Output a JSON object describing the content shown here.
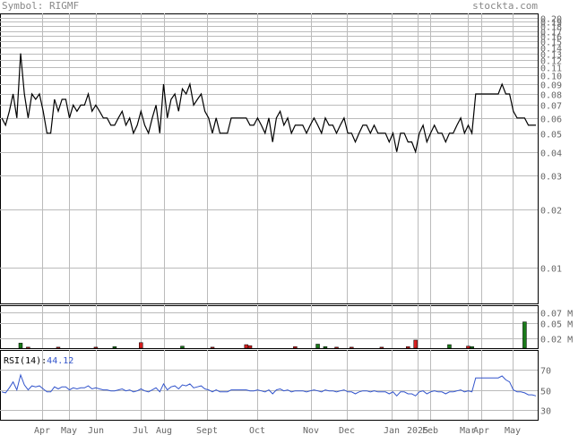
{
  "header": {
    "symbol_label": "Symbol:",
    "symbol": "RIGMF",
    "site": "stockta.com"
  },
  "colors": {
    "price_line": "#000000",
    "rsi_line": "#3355cc",
    "vol_up": "#1a7a1a",
    "vol_down": "#d42020",
    "grid": "#bbbbbb",
    "rsi_value": "#3355cc"
  },
  "chart_data": [
    {
      "type": "line",
      "name": "price",
      "scale": "log",
      "ylim": [
        0.0065,
        0.21
      ],
      "yticks": [
        0.2,
        0.19,
        0.18,
        0.17,
        0.16,
        0.15,
        0.14,
        0.13,
        0.12,
        0.11,
        0.1,
        0.09,
        0.08,
        0.07,
        0.06,
        0.05,
        0.04,
        0.03,
        0.02,
        0.01
      ],
      "ytick_labels": [
        "0.20",
        "0.19",
        "0.18",
        "0.17",
        "0.16",
        "0.15",
        "0.14",
        "0.13",
        "0.12",
        "0.11",
        "0.10",
        "0.09",
        "0.08",
        "0.07",
        "0.06",
        "0.05",
        "0.04",
        "0.03",
        "0.02",
        "0.01"
      ],
      "xticks": [
        "Apr",
        "May",
        "Jun",
        "Jul",
        "Aug",
        "Sept",
        "Oct",
        "Nov",
        "Dec",
        "Jan",
        "2025",
        "Feb",
        "Mar",
        "Apr",
        "May"
      ],
      "values": [
        0.06,
        0.055,
        0.065,
        0.08,
        0.06,
        0.13,
        0.08,
        0.06,
        0.08,
        0.075,
        0.08,
        0.065,
        0.05,
        0.05,
        0.075,
        0.065,
        0.075,
        0.075,
        0.06,
        0.07,
        0.065,
        0.07,
        0.07,
        0.08,
        0.065,
        0.07,
        0.065,
        0.06,
        0.06,
        0.055,
        0.055,
        0.06,
        0.065,
        0.055,
        0.06,
        0.05,
        0.055,
        0.065,
        0.055,
        0.05,
        0.06,
        0.07,
        0.05,
        0.09,
        0.06,
        0.075,
        0.08,
        0.065,
        0.085,
        0.08,
        0.09,
        0.07,
        0.075,
        0.08,
        0.065,
        0.06,
        0.05,
        0.06,
        0.05,
        0.05,
        0.05,
        0.06,
        0.06,
        0.06,
        0.06,
        0.06,
        0.055,
        0.055,
        0.06,
        0.055,
        0.05,
        0.06,
        0.045,
        0.06,
        0.065,
        0.055,
        0.06,
        0.05,
        0.055,
        0.055,
        0.055,
        0.05,
        0.055,
        0.06,
        0.055,
        0.05,
        0.06,
        0.055,
        0.055,
        0.05,
        0.055,
        0.06,
        0.05,
        0.05,
        0.045,
        0.05,
        0.055,
        0.055,
        0.05,
        0.055,
        0.05,
        0.05,
        0.05,
        0.045,
        0.05,
        0.04,
        0.05,
        0.05,
        0.045,
        0.045,
        0.04,
        0.05,
        0.055,
        0.045,
        0.05,
        0.055,
        0.05,
        0.05,
        0.045,
        0.05,
        0.05,
        0.055,
        0.06,
        0.05,
        0.055,
        0.05,
        0.08,
        0.08,
        0.08,
        0.08,
        0.08,
        0.08,
        0.08,
        0.09,
        0.08,
        0.08,
        0.065,
        0.06,
        0.06,
        0.06,
        0.055,
        0.055,
        0.055
      ]
    },
    {
      "type": "bar",
      "name": "volume",
      "ylim": [
        0,
        0.085
      ],
      "yticks": [
        0.07,
        0.05,
        0.02
      ],
      "ytick_labels": [
        "0.07 M",
        "0.05 M",
        "0.02 M"
      ],
      "bars": [
        {
          "i": 5,
          "v": 0.01,
          "up": true
        },
        {
          "i": 7,
          "v": 0.002,
          "up": false
        },
        {
          "i": 15,
          "v": 0.002,
          "up": false
        },
        {
          "i": 25,
          "v": 0.002,
          "up": false
        },
        {
          "i": 30,
          "v": 0.003,
          "up": true
        },
        {
          "i": 37,
          "v": 0.011,
          "up": false
        },
        {
          "i": 48,
          "v": 0.004,
          "up": true
        },
        {
          "i": 56,
          "v": 0.002,
          "up": false
        },
        {
          "i": 65,
          "v": 0.007,
          "up": false
        },
        {
          "i": 66,
          "v": 0.005,
          "up": false
        },
        {
          "i": 78,
          "v": 0.003,
          "up": false
        },
        {
          "i": 84,
          "v": 0.008,
          "up": true
        },
        {
          "i": 86,
          "v": 0.003,
          "up": true
        },
        {
          "i": 89,
          "v": 0.002,
          "up": false
        },
        {
          "i": 93,
          "v": 0.002,
          "up": false
        },
        {
          "i": 101,
          "v": 0.002,
          "up": false
        },
        {
          "i": 108,
          "v": 0.003,
          "up": false
        },
        {
          "i": 110,
          "v": 0.016,
          "up": false
        },
        {
          "i": 119,
          "v": 0.007,
          "up": true
        },
        {
          "i": 124,
          "v": 0.004,
          "up": false
        },
        {
          "i": 125,
          "v": 0.003,
          "up": true
        },
        {
          "i": 139,
          "v": 0.052,
          "up": true
        }
      ]
    },
    {
      "type": "line",
      "name": "RSI",
      "label": "RSI(14):",
      "current": "44.12",
      "ylim": [
        20,
        90
      ],
      "yticks": [
        70,
        50,
        30
      ],
      "ytick_labels": [
        "70",
        "50",
        "30"
      ],
      "values": [
        48,
        47,
        52,
        58,
        50,
        65,
        55,
        50,
        54,
        53,
        54,
        51,
        48,
        48,
        53,
        51,
        53,
        53,
        50,
        52,
        51,
        52,
        52,
        54,
        51,
        52,
        51,
        50,
        50,
        49,
        49,
        50,
        51,
        49,
        50,
        48,
        49,
        51,
        49,
        48,
        50,
        52,
        48,
        56,
        50,
        53,
        54,
        51,
        55,
        54,
        56,
        52,
        53,
        54,
        51,
        50,
        48,
        50,
        48,
        48,
        48,
        50,
        50,
        50,
        50,
        50,
        49,
        49,
        50,
        49,
        48,
        50,
        46,
        50,
        51,
        49,
        50,
        48,
        49,
        49,
        49,
        48,
        49,
        50,
        49,
        48,
        50,
        49,
        49,
        48,
        49,
        50,
        48,
        48,
        46,
        48,
        49,
        49,
        48,
        49,
        48,
        48,
        48,
        46,
        48,
        44,
        48,
        48,
        46,
        46,
        44,
        48,
        49,
        46,
        48,
        49,
        48,
        48,
        46,
        48,
        48,
        49,
        50,
        48,
        49,
        48,
        62,
        62,
        62,
        62,
        62,
        62,
        62,
        64,
        60,
        58,
        50,
        48,
        48,
        47,
        45,
        45,
        44
      ]
    }
  ]
}
